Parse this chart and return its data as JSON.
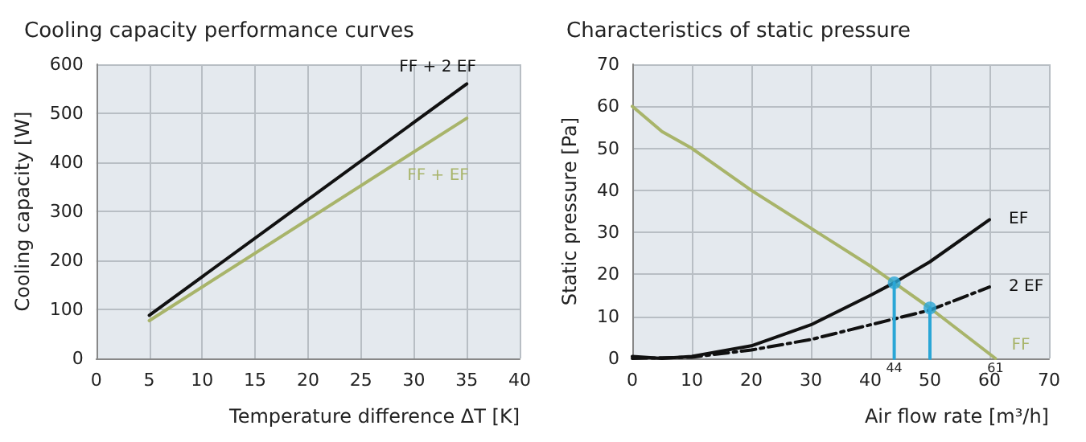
{
  "chart_data": [
    {
      "type": "line",
      "title": "Cooling capacity performance curves",
      "xlabel": "Temperature difference ΔT [K]",
      "ylabel": "Cooling capacity [W]",
      "xlim": [
        0,
        40
      ],
      "xticks": [
        0,
        5,
        10,
        15,
        20,
        25,
        30,
        35,
        40
      ],
      "ylim": [
        0,
        600
      ],
      "yticks": [
        0,
        100,
        200,
        300,
        400,
        500,
        600
      ],
      "grid": true,
      "series": [
        {
          "name": "FF + 2 EF",
          "color": "#111111",
          "x": [
            5,
            35
          ],
          "values": [
            88,
            560
          ]
        },
        {
          "name": "FF + EF",
          "color": "#a8b46a",
          "x": [
            5,
            35
          ],
          "values": [
            77,
            490
          ]
        }
      ]
    },
    {
      "type": "line",
      "title": "Characteristics of static pressure",
      "xlabel": "Air flow rate [m³/h]",
      "ylabel": "Static pressure [Pa]",
      "xlim": [
        0,
        70
      ],
      "xticks": [
        0,
        10,
        20,
        30,
        40,
        50,
        60,
        70
      ],
      "ylim": [
        0,
        70
      ],
      "yticks": [
        0,
        10,
        20,
        30,
        40,
        50,
        60,
        70
      ],
      "grid": true,
      "series": [
        {
          "name": "FF",
          "color": "#a8b46a",
          "x": [
            0,
            5,
            10,
            20,
            30,
            40,
            44,
            50,
            61
          ],
          "values": [
            60,
            54,
            50,
            40,
            31,
            22,
            18,
            12,
            0
          ]
        },
        {
          "name": "EF",
          "color": "#111111",
          "x": [
            0,
            5,
            10,
            20,
            30,
            40,
            44,
            50,
            60
          ],
          "values": [
            0.5,
            0,
            0.5,
            3,
            8,
            15,
            18,
            23,
            33
          ]
        },
        {
          "name": "2 EF",
          "color": "#111111",
          "line_style": "dashed",
          "x": [
            0,
            10,
            20,
            30,
            40,
            50,
            60
          ],
          "values": [
            0,
            0.3,
            2,
            4.5,
            8,
            11.5,
            17
          ]
        },
        {
          "color": "#2aa6d6",
          "x": [
            44,
            44
          ],
          "values": [
            0,
            18
          ]
        },
        {
          "color": "#2aa6d6",
          "x": [
            50,
            50
          ],
          "values": [
            0,
            12
          ]
        },
        {
          "type": "scatter",
          "color": "#2aa6d6",
          "marker": "circle",
          "x": [
            44,
            50
          ],
          "values": [
            18,
            12
          ]
        }
      ],
      "annotations": [
        {
          "text": "44",
          "x": 44,
          "y": 0
        },
        {
          "text": "61",
          "x": 61,
          "y": 0
        }
      ]
    }
  ]
}
